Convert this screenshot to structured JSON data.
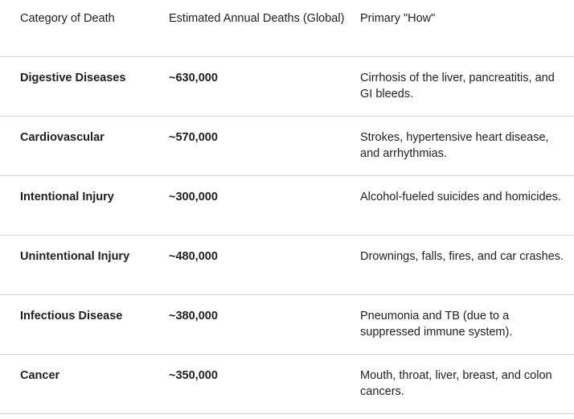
{
  "table": {
    "header": [
      "Category of Death",
      "Estimated Annual Deaths (Global)",
      "Primary \"How\""
    ],
    "rows": [
      [
        "Digestive Diseases",
        "~630,000",
        "Cirrhosis of the liver, pancreatitis, and GI bleeds."
      ],
      [
        "Cardiovascular",
        "~570,000",
        "Strokes, hypertensive heart disease, and arrhythmias."
      ],
      [
        "Intentional Injury",
        "~300,000",
        "Alcohol-fueled suicides and homicides."
      ],
      [
        "Unintentional Injury",
        "~480,000",
        "Drownings, falls, fires, and car crashes."
      ],
      [
        "Infectious Disease",
        "~380,000",
        "Pneumonia and TB (due to a suppressed immune system)."
      ],
      [
        "Cancer",
        "~350,000",
        "Mouth, throat, liver, breast, and colon cancers."
      ]
    ]
  }
}
